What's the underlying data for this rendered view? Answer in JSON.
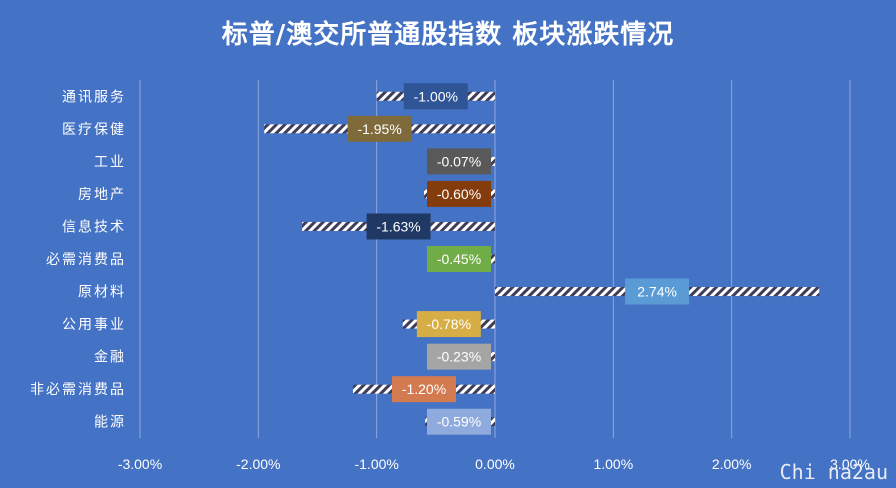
{
  "chart_data": {
    "type": "bar",
    "orientation": "horizontal",
    "title": "标普/澳交所普通股指数 板块涨跌情况",
    "categories": [
      "通讯服务",
      "医疗保健",
      "工业",
      "房地产",
      "信息技术",
      "必需消费品",
      "原材料",
      "公用事业",
      "金融",
      "非必需消费品",
      "能源"
    ],
    "values": [
      -1.0,
      -1.95,
      -0.07,
      -0.6,
      -1.63,
      -0.45,
      2.74,
      -0.78,
      -0.23,
      -1.2,
      -0.59
    ],
    "data_labels": [
      "-1.00%",
      "-1.95%",
      "-0.07%",
      "-0.60%",
      "-1.63%",
      "-0.45%",
      "2.74%",
      "-0.78%",
      "-0.23%",
      "-1.20%",
      "-0.59%"
    ],
    "label_colors": [
      "#2F5597",
      "#7F6A3C",
      "#595959",
      "#843C0C",
      "#203864",
      "#70AD47",
      "#5B9BD5",
      "#D6AE45",
      "#A5A5A5",
      "#D47A50",
      "#8FAADC"
    ],
    "xlim": [
      -3,
      3
    ],
    "xticks": [
      -3,
      -2,
      -1,
      0,
      1,
      2,
      3
    ],
    "xtick_labels": [
      "-3.00%",
      "-2.00%",
      "-1.00%",
      "0.00%",
      "1.00%",
      "2.00%",
      "3.00%"
    ],
    "grid": true,
    "legend": "none"
  },
  "watermark": "Chi na2au"
}
